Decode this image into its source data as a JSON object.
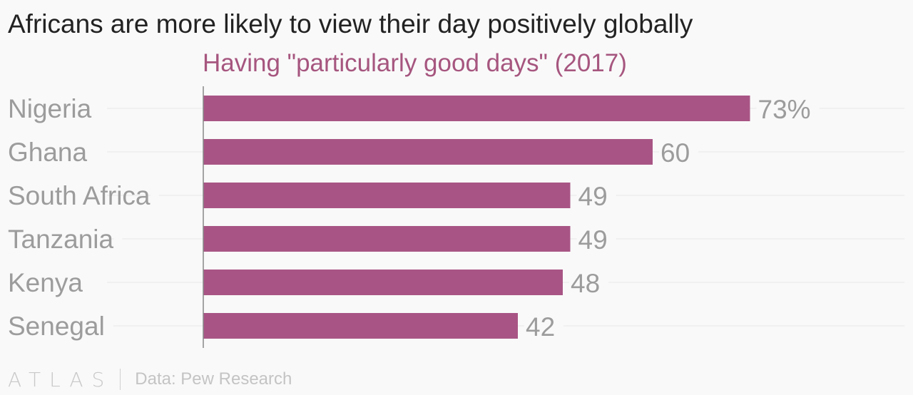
{
  "title": "Africans are more likely to view their day positively globally",
  "subtitle": "Having \"particularly good days\" (2017)",
  "footer": {
    "logo": "ATLAS",
    "source": "Data: Pew Research"
  },
  "colors": {
    "bar": "#a85585",
    "subtitle": "#a6567f",
    "label": "#9c9c9c",
    "grid": "#e6e6e6",
    "axis": "#888888"
  },
  "chart_data": {
    "type": "bar",
    "orientation": "horizontal",
    "categories": [
      "Nigeria",
      "Ghana",
      "South Africa",
      "Tanzania",
      "Kenya",
      "Senegal"
    ],
    "values": [
      73,
      60,
      49,
      49,
      48,
      42
    ],
    "value_labels": [
      "73%",
      "60",
      "49",
      "49",
      "48",
      "42"
    ],
    "xlim": [
      0,
      100
    ],
    "grid": true
  }
}
